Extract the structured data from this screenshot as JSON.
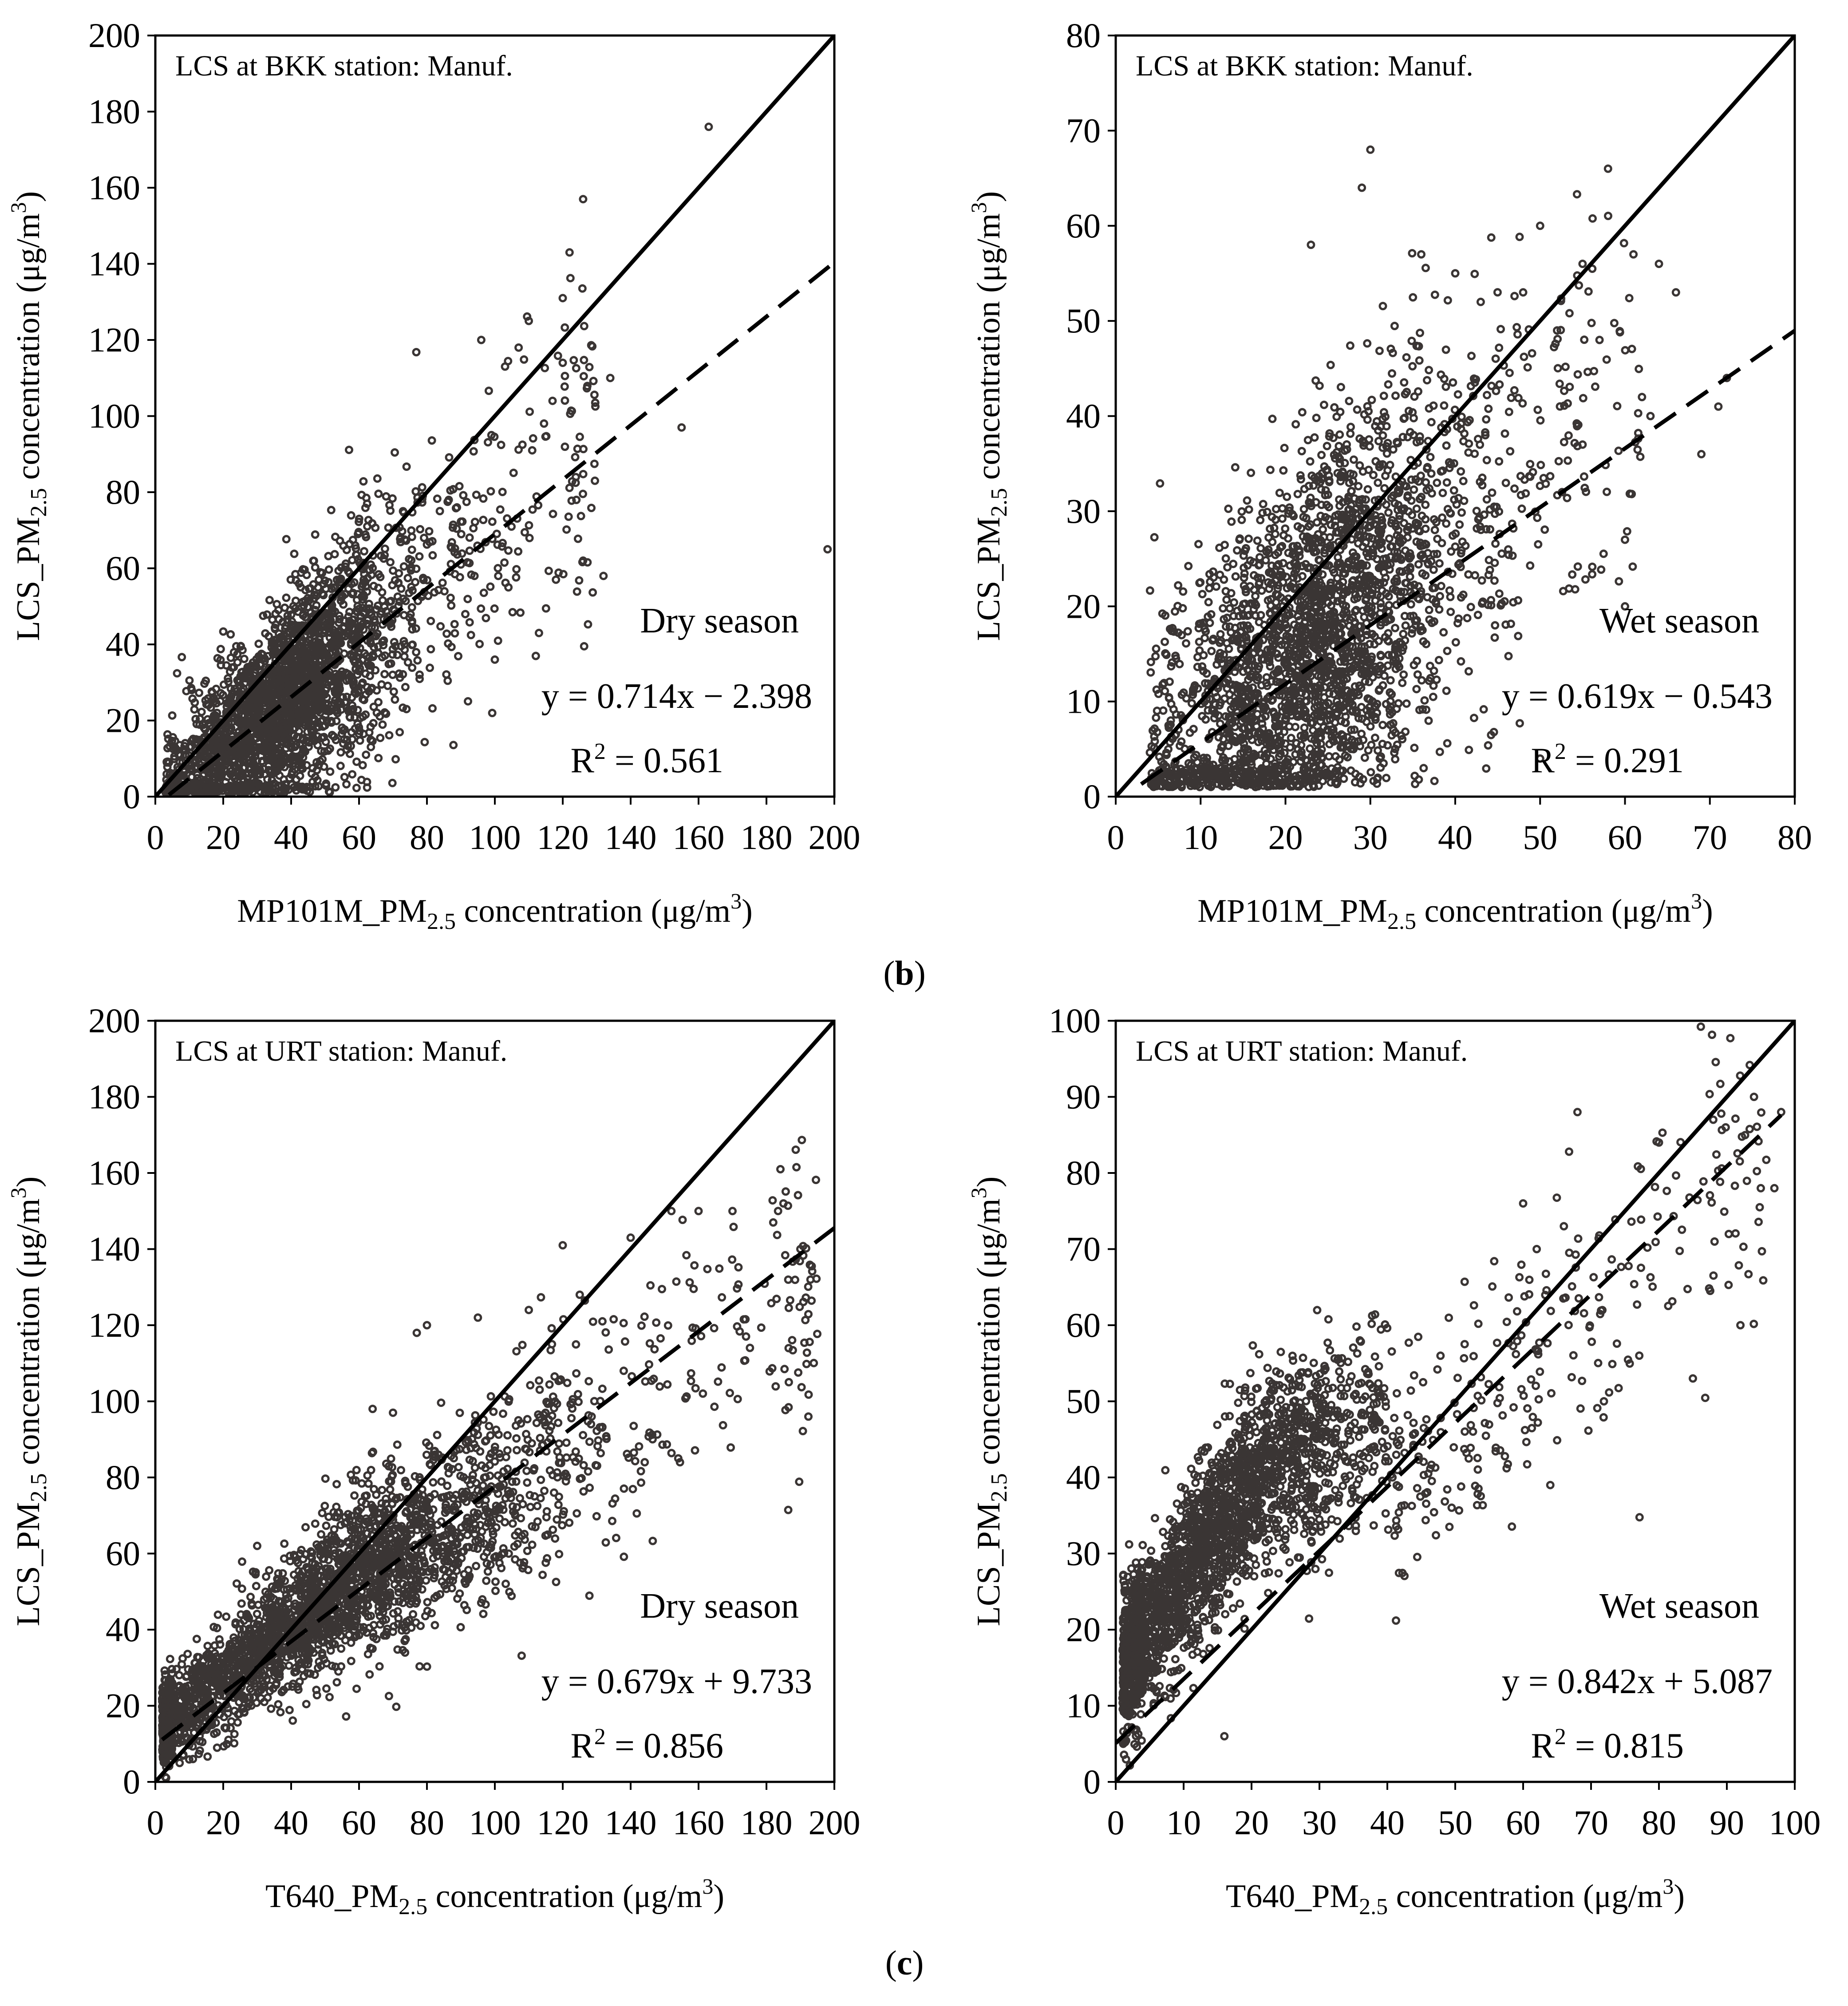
{
  "panel_labels": {
    "b": "b",
    "c": "c"
  },
  "chart_data": [
    {
      "type": "scatter",
      "id": "b-dry",
      "title": "LCS at BKK station: Manuf.",
      "season": "Dry season",
      "xlabel": "MP101M_PM",
      "xlabel_sub": "2.5",
      "xlabel_tail": " concentration (μg/m",
      "ylabel": "LCS_PM",
      "ylabel_sub": "2.5",
      "ylabel_tail": " concentration (μg/m",
      "unit_sup": "3",
      "close_paren": ")",
      "xlim": [
        0,
        200
      ],
      "ylim": [
        0,
        200
      ],
      "xticks": [
        0,
        20,
        40,
        60,
        80,
        100,
        120,
        140,
        160,
        180,
        200
      ],
      "yticks": [
        0,
        20,
        40,
        60,
        80,
        100,
        120,
        140,
        160,
        180,
        200
      ],
      "equation": "y = 0.714x − 2.398",
      "r2_label": "R",
      "r2_sup": "2",
      "r2_value": " = 0.561",
      "fit": {
        "slope": 0.714,
        "intercept": -2.398,
        "x_range": [
          4,
          200
        ]
      },
      "reference_line": "1:1",
      "points_n": 2600,
      "sim": {
        "seed": 11,
        "xmin": 3,
        "xmode": 35,
        "xmax": 130,
        "xspread": 17,
        "slope": 0.714,
        "intercept": -2.398,
        "noise": 8,
        "noise_growth": 0.12,
        "ymin": 1
      },
      "extra_points": [
        [
          163,
          176
        ],
        [
          126,
          157
        ],
        [
          122,
          143
        ],
        [
          120,
          131
        ],
        [
          110,
          125
        ],
        [
          103,
          113
        ],
        [
          107,
          118
        ],
        [
          96,
          120
        ],
        [
          134,
          110
        ],
        [
          155,
          97
        ],
        [
          198,
          65
        ],
        [
          132,
          58
        ],
        [
          126,
          62
        ],
        [
          118,
          57
        ],
        [
          113,
          43
        ],
        [
          104,
          55
        ],
        [
          100,
          36
        ],
        [
          101,
          58
        ],
        [
          94,
          58
        ],
        [
          90,
          61
        ],
        [
          120,
          114
        ],
        [
          117,
          104
        ],
        [
          111,
          91
        ],
        [
          99,
          95
        ]
      ],
      "colors": {
        "points": "#3a3534",
        "lines": "#000000"
      }
    },
    {
      "type": "scatter",
      "id": "b-wet",
      "title": "LCS at BKK station: Manuf.",
      "season": "Wet season",
      "xlabel": "MP101M_PM",
      "xlabel_sub": "2.5",
      "xlabel_tail": " concentration (μg/m",
      "ylabel": "LCS_PM",
      "ylabel_sub": "2.5",
      "ylabel_tail": " concentration (μg/m",
      "unit_sup": "3",
      "close_paren": ")",
      "xlim": [
        0,
        80
      ],
      "ylim": [
        0,
        80
      ],
      "xticks": [
        0,
        10,
        20,
        30,
        40,
        50,
        60,
        70,
        80
      ],
      "yticks": [
        0,
        10,
        20,
        30,
        40,
        50,
        60,
        70,
        80
      ],
      "equation": "y = 0.619x − 0.543",
      "r2_label": "R",
      "r2_sup": "2",
      "r2_value": " = 0.291",
      "fit": {
        "slope": 0.619,
        "intercept": -0.543,
        "x_range": [
          3,
          80
        ]
      },
      "reference_line": "1:1",
      "points_n": 2700,
      "sim": {
        "seed": 23,
        "xmin": 4,
        "xmode": 22,
        "xmax": 62,
        "xspread": 9,
        "slope": 0.75,
        "intercept": -1.5,
        "noise": 9,
        "noise_growth": 0.05,
        "ymin": 1
      },
      "extra_points": [
        [
          30,
          68
        ],
        [
          58,
          66
        ],
        [
          29,
          64
        ],
        [
          50,
          60
        ],
        [
          61,
          57
        ],
        [
          64,
          56
        ],
        [
          55,
          56
        ],
        [
          66,
          53
        ],
        [
          72,
          44
        ],
        [
          71,
          41
        ],
        [
          69,
          36
        ],
        [
          63,
          40
        ],
        [
          60,
          27
        ],
        [
          60,
          20
        ],
        [
          50,
          4
        ],
        [
          40,
          55
        ],
        [
          43,
          52
        ],
        [
          36,
          57
        ],
        [
          23,
          58
        ],
        [
          48,
          53
        ],
        [
          52,
          49
        ],
        [
          57,
          48
        ],
        [
          62,
          42
        ],
        [
          55,
          37
        ]
      ],
      "colors": {
        "points": "#3a3534",
        "lines": "#000000"
      }
    },
    {
      "type": "scatter",
      "id": "c-dry",
      "title": "LCS at URT station: Manuf.",
      "season": "Dry season",
      "xlabel": "T640_PM",
      "xlabel_sub": "2.5",
      "xlabel_tail": " concentration (μg/m",
      "ylabel": "LCS_PM",
      "ylabel_sub": "2.5",
      "ylabel_tail": " concentration (μg/m",
      "unit_sup": "3",
      "close_paren": ")",
      "xlim": [
        0,
        200
      ],
      "ylim": [
        0,
        200
      ],
      "xticks": [
        0,
        20,
        40,
        60,
        80,
        100,
        120,
        140,
        160,
        180,
        200
      ],
      "yticks": [
        0,
        20,
        40,
        60,
        80,
        100,
        120,
        140,
        160,
        180,
        200
      ],
      "equation": "y = 0.679x + 9.733",
      "r2_label": "R",
      "r2_sup": "2",
      "r2_value": " = 0.856",
      "fit": {
        "slope": 0.679,
        "intercept": 9.733,
        "x_range": [
          2,
          200
        ]
      },
      "reference_line": "1:1",
      "points_n": 3000,
      "sim": {
        "seed": 37,
        "xmin": 2,
        "xmode": 40,
        "xmax": 195,
        "xspread": 35,
        "slope": 0.679,
        "intercept": 9.733,
        "noise": 5,
        "noise_growth": 0.09,
        "ymin": 0,
        "bend": true
      },
      "extra_points": [
        [
          185,
          152
        ],
        [
          182,
          147
        ],
        [
          170,
          150
        ],
        [
          160,
          150
        ],
        [
          152,
          150
        ],
        [
          140,
          143
        ],
        [
          120,
          141
        ],
        [
          95,
          122
        ],
        [
          80,
          120
        ],
        [
          77,
          118
        ],
        [
          70,
          97
        ],
        [
          30,
          62
        ],
        [
          64,
          98
        ],
        [
          125,
          128
        ],
        [
          110,
          124
        ],
        [
          190,
          140
        ]
      ],
      "colors": {
        "points": "#3a3534",
        "lines": "#000000"
      }
    },
    {
      "type": "scatter",
      "id": "c-wet",
      "title": "LCS at URT station: Manuf.",
      "season": "Wet season",
      "xlabel": "T640_PM",
      "xlabel_sub": "2.5",
      "xlabel_tail": " concentration (μg/m",
      "ylabel": "LCS_PM",
      "ylabel_sub": "2.5",
      "ylabel_tail": " concentration (μg/m",
      "unit_sup": "3",
      "close_paren": ")",
      "xlim": [
        0,
        100
      ],
      "ylim": [
        0,
        100
      ],
      "xticks": [
        0,
        10,
        20,
        30,
        40,
        50,
        60,
        70,
        80,
        90,
        100
      ],
      "yticks": [
        0,
        10,
        20,
        30,
        40,
        50,
        60,
        70,
        80,
        90,
        100
      ],
      "equation": "y = 0.842x + 5.087",
      "r2_label": "R",
      "r2_sup": "2",
      "r2_value": " = 0.815",
      "fit": {
        "slope": 0.842,
        "intercept": 5.087,
        "x_range": [
          0,
          98
        ]
      },
      "reference_line": "1:1",
      "points_n": 2700,
      "sim": {
        "seed": 53,
        "xmin": 1,
        "xmode": 12,
        "xmax": 96,
        "xspread": 12,
        "slope": 0.842,
        "intercept": 5.087,
        "noise": 5,
        "noise_growth": 0.06,
        "ymin": 0,
        "bend": true
      },
      "extra_points": [
        [
          68,
          88
        ],
        [
          94,
          90
        ],
        [
          80,
          84
        ],
        [
          88,
          87
        ],
        [
          98,
          88
        ],
        [
          97,
          78
        ],
        [
          95,
          78
        ],
        [
          60,
          76
        ],
        [
          62,
          70
        ],
        [
          66,
          73
        ],
        [
          92,
          60
        ],
        [
          85,
          53
        ],
        [
          64,
          39
        ],
        [
          16,
          6
        ],
        [
          1,
          11
        ],
        [
          2,
          9
        ]
      ],
      "colors": {
        "points": "#3a3534",
        "lines": "#000000"
      }
    }
  ]
}
